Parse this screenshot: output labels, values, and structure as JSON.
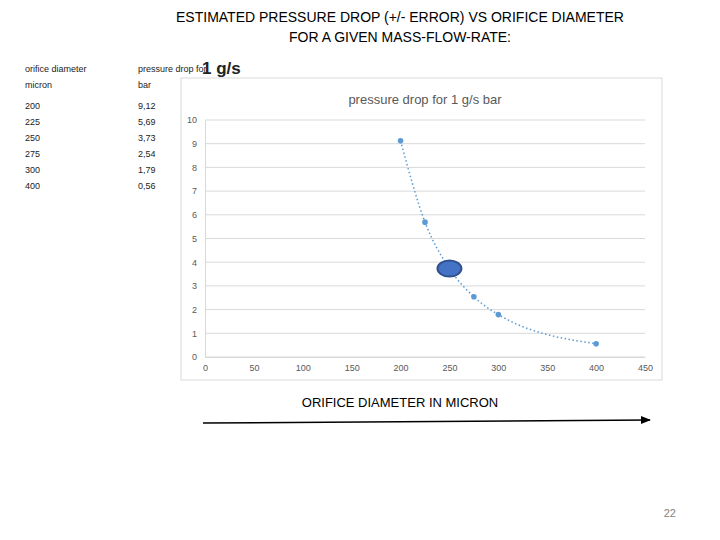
{
  "title": [
    "ESTIMATED PRESSURE DROP (+/- ERROR) VS ORIFICE DIAMETER",
    "FOR A GIVEN MASS-FLOW-RATE:"
  ],
  "table": {
    "header": [
      [
        "orifice diameter",
        "micron"
      ],
      [
        "pressure drop for",
        "1 g/s",
        "bar"
      ]
    ],
    "rows": [
      [
        "200",
        "9,12"
      ],
      [
        "225",
        "5,69"
      ],
      [
        "250",
        "3,73"
      ],
      [
        "275",
        "2,54"
      ],
      [
        "300",
        "1,79"
      ],
      [
        "400",
        "0,56"
      ]
    ]
  },
  "chart_data": {
    "type": "line",
    "title": "pressure drop for 1 g/s bar",
    "x_label": "ORIFICE DIAMETER IN MICRON",
    "x": [
      200,
      225,
      250,
      275,
      300,
      400
    ],
    "series": [
      {
        "name": "pressure drop for 1 g/s bar",
        "color": "#5b9bd5",
        "values": [
          9.12,
          5.69,
          3.73,
          2.54,
          1.79,
          0.56
        ],
        "marker": "circle",
        "line_style": "dotted"
      }
    ],
    "xlim": [
      0,
      450
    ],
    "xticks": [
      0,
      50,
      100,
      150,
      200,
      250,
      300,
      350,
      400,
      450
    ],
    "ylim": [
      0,
      10
    ],
    "yticks": [
      0,
      1,
      2,
      3,
      4,
      5,
      6,
      7,
      8,
      9,
      10
    ],
    "grid": true,
    "highlight": {
      "x": 250,
      "y": 3.73
    }
  },
  "page_number": "22"
}
